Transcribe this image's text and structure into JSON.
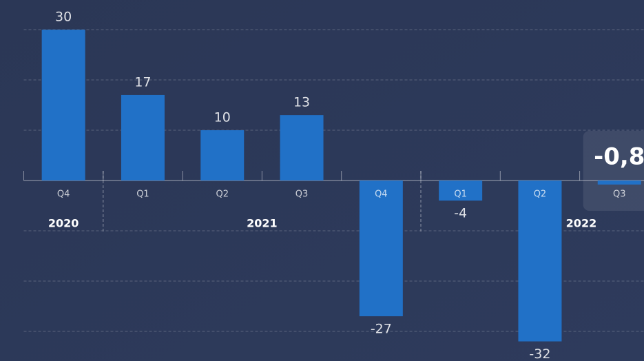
{
  "chart_data": {
    "type": "bar",
    "categories": [
      "Q4",
      "Q1",
      "Q2",
      "Q3",
      "Q4",
      "Q1",
      "Q2",
      "Q3"
    ],
    "groups": [
      {
        "label": "2020",
        "count": 1
      },
      {
        "label": "2021",
        "count": 4
      },
      {
        "label": "2022",
        "count": 3
      }
    ],
    "values": [
      30,
      17,
      10,
      13,
      -27,
      -4,
      -32,
      -0.8
    ],
    "value_labels": [
      "30",
      "17",
      "10",
      "13",
      "-27",
      "-4",
      "-32",
      "-0,8"
    ],
    "color": "#2171c7",
    "ylim": [
      -35.9,
      35.9
    ],
    "yticks": [
      -30,
      -20,
      -10,
      0,
      10,
      20,
      30
    ],
    "grid": true
  }
}
